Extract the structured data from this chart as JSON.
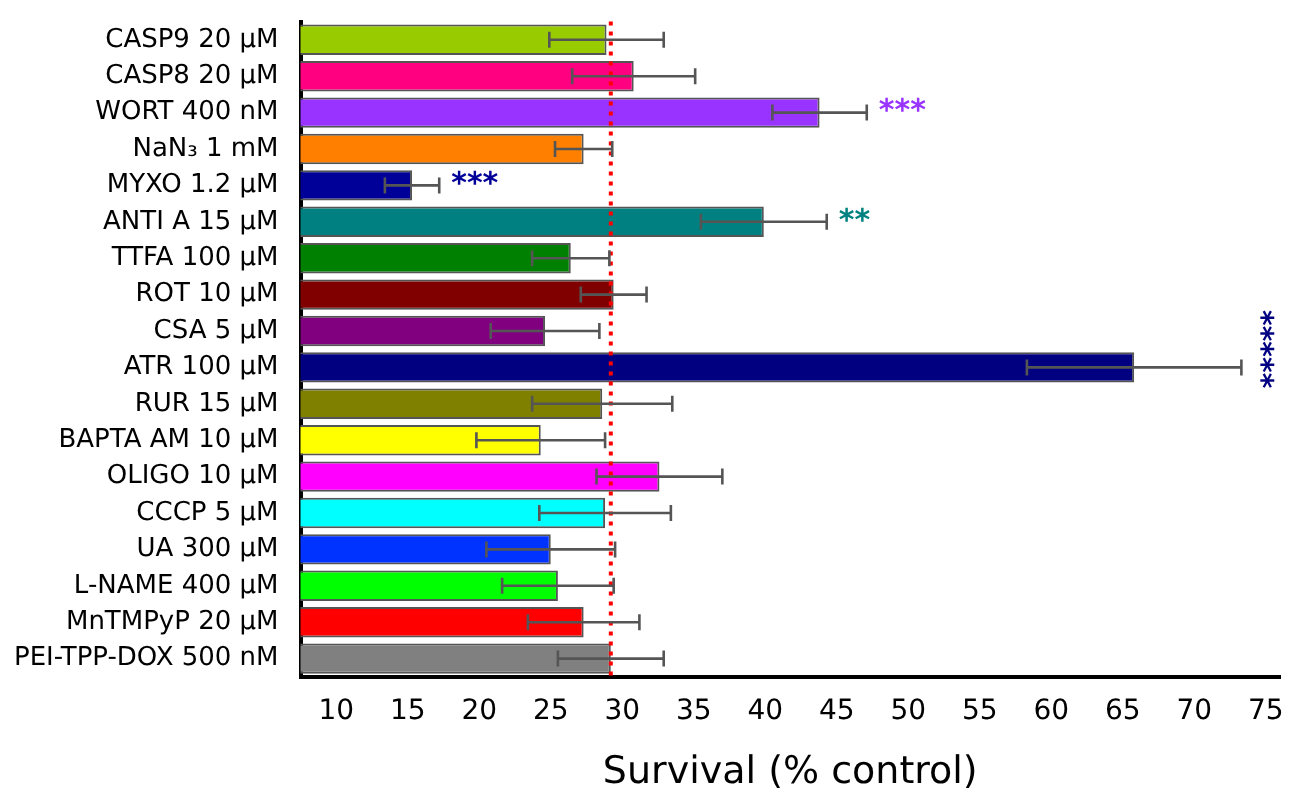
{
  "chart_data": {
    "type": "bar",
    "orientation": "horizontal",
    "xlabel": "Survival (% control)",
    "categories": [
      "CASP9 20 μM",
      "CASP8 20 μM",
      "WORT 400 nM",
      "NaN₃ 1 mM",
      "MYXO 1.2 μM",
      "ANTI A 15 μM",
      "TTFA 100 μM",
      "ROT 10 μM",
      "CSA 5 μM",
      "ATR 100 μM",
      "RUR 15 μM",
      "BAPTA AM 10 μM",
      "OLIGO 10 μM",
      "CCCP 5 μM",
      "UA 300 μM",
      "L-NAME 400 μM",
      "MnTMPyP 20 μM",
      "PEI-TPP-DOX 500 nM"
    ],
    "values": [
      28.9,
      30.8,
      43.8,
      27.3,
      15.3,
      39.9,
      26.4,
      29.4,
      24.6,
      65.8,
      28.6,
      24.3,
      32.6,
      28.8,
      25.0,
      25.5,
      27.3,
      29.2
    ],
    "errors": [
      4.0,
      4.3,
      3.3,
      2.0,
      1.9,
      4.4,
      2.7,
      2.3,
      3.8,
      7.5,
      4.9,
      4.5,
      4.4,
      4.6,
      4.5,
      3.9,
      3.9,
      3.7
    ],
    "colors": [
      "#99cc00",
      "#ff0080",
      "#9933ff",
      "#ff8000",
      "#000099",
      "#008080",
      "#008000",
      "#800000",
      "#800080",
      "#000080",
      "#808000",
      "#ffff00",
      "#ff00ff",
      "#00ffff",
      "#0033ff",
      "#00ff00",
      "#ff0000",
      "#808080"
    ],
    "xlim": [
      7.5,
      76
    ],
    "xticks": [
      10,
      15,
      20,
      25,
      30,
      35,
      40,
      45,
      50,
      55,
      60,
      65,
      70,
      75
    ],
    "ref_lines": [
      {
        "axis": "x",
        "value": 29.2,
        "color": "#ff0000",
        "line_style": "dotted"
      }
    ],
    "annotations": [
      {
        "text": "***",
        "x": 43.8,
        "y": "WORT 400 nM"
      },
      {
        "text": "***",
        "x": 15.3,
        "y": "MYXO 1.2 μM"
      },
      {
        "text": "**",
        "x": 39.9,
        "y": "ANTI A 15 μM"
      },
      "*****"
    ],
    "grid": false,
    "legend": false
  }
}
